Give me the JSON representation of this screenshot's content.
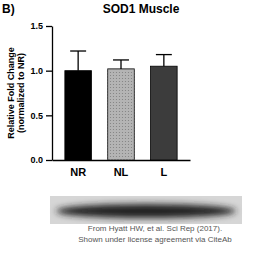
{
  "chart_data": {
    "type": "bar",
    "title": "SOD1 Muscle",
    "y_label": [
      "Relative Fold Change",
      "(normalized to NR)"
    ],
    "annotations": [
      "B)",
      "From Hyatt HW, et al. Sci Rep (2017).",
      "Shown under license agreement via CiteAb"
    ],
    "categories": [
      "NR",
      "NL",
      "L"
    ],
    "values": [
      1.0,
      1.02,
      1.05
    ],
    "errors": [
      0.22,
      0.1,
      0.13
    ],
    "colors": [
      "#000000",
      "#b4b4b4",
      "#3c3c3c"
    ],
    "ylim": [
      0,
      1.5
    ],
    "yticks": [
      {
        "value": 0,
        "label": "0.0"
      },
      {
        "value": 0.5,
        "label": "0.5"
      },
      {
        "value": 1,
        "label": "1.0"
      },
      {
        "value": 1.5,
        "label": "1.5"
      }
    ],
    "grid": false
  }
}
